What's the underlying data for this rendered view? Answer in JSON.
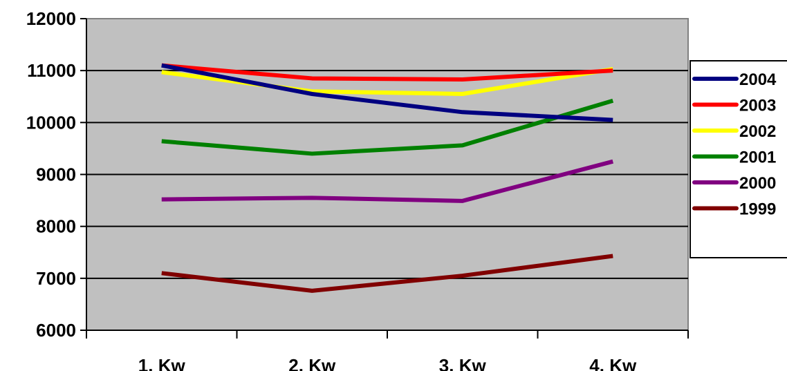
{
  "chart_data": {
    "type": "line",
    "title": "",
    "xlabel": "",
    "ylabel": "",
    "categories": [
      "1. Kw",
      "2. Kw",
      "3. Kw",
      "4. Kw"
    ],
    "ylim": [
      6000,
      12000
    ],
    "yticks": [
      "6000",
      "7000",
      "8000",
      "9000",
      "10000",
      "11000",
      "12000"
    ],
    "grid": "horizontal major gridlines",
    "legend_position": "right",
    "plot_background": "#c0c0c0",
    "series": [
      {
        "name": "2004",
        "color": "#000080",
        "values": [
          11100,
          10550,
          10200,
          10050
        ]
      },
      {
        "name": "2003",
        "color": "#ff0000",
        "values": [
          11100,
          10850,
          10830,
          11000
        ]
      },
      {
        "name": "2002",
        "color": "#ffff00",
        "values": [
          10970,
          10600,
          10550,
          11030
        ]
      },
      {
        "name": "2001",
        "color": "#008000",
        "values": [
          9640,
          9400,
          9560,
          10420
        ]
      },
      {
        "name": "2000",
        "color": "#800080",
        "values": [
          8520,
          8550,
          8490,
          9250
        ]
      },
      {
        "name": "1999",
        "color": "#800000",
        "values": [
          7100,
          6760,
          7050,
          7430
        ]
      }
    ]
  }
}
